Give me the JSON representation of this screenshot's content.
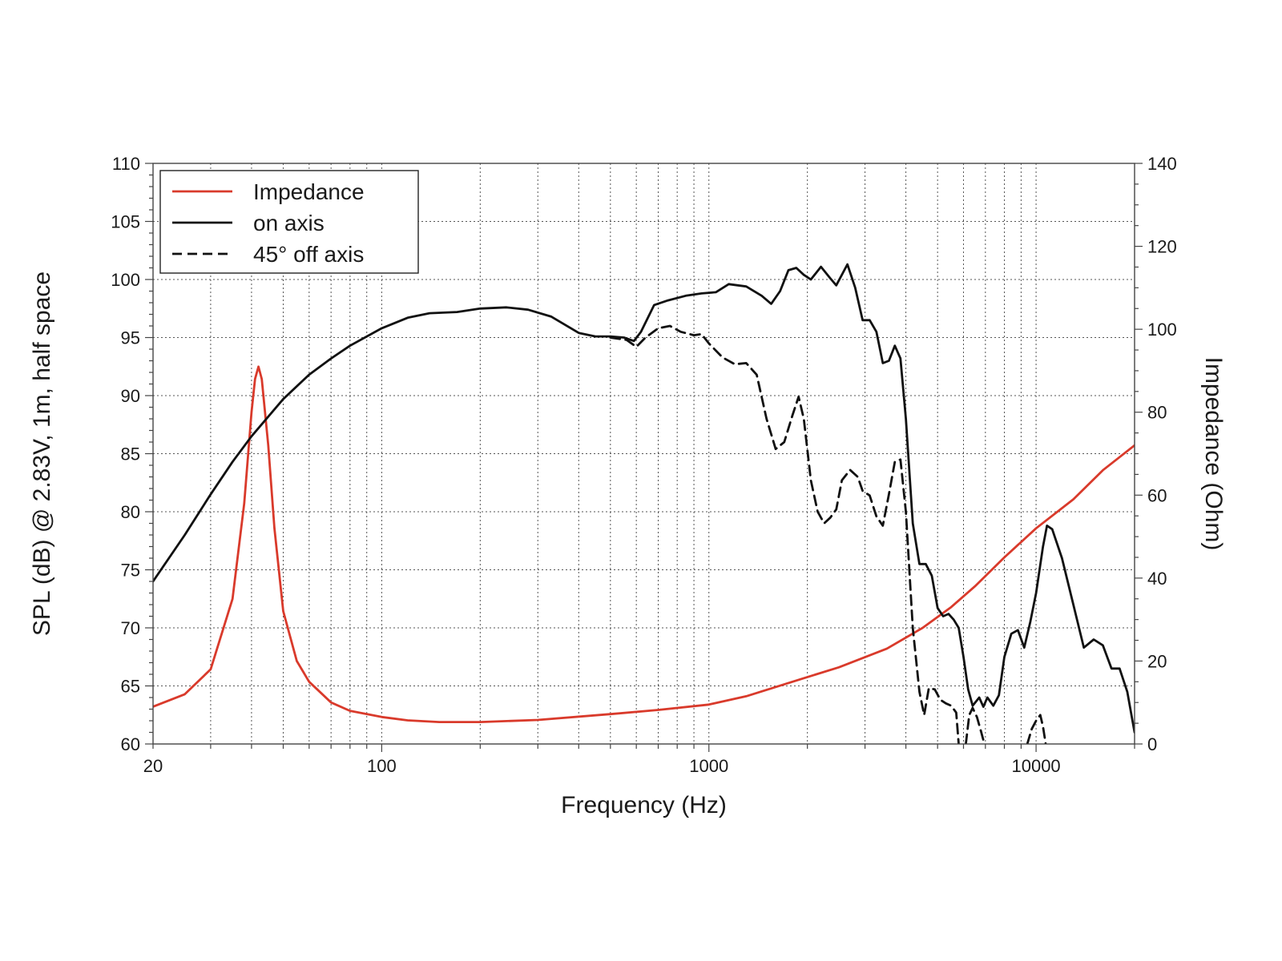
{
  "chart_data": {
    "type": "line",
    "xlabel": "Frequency (Hz)",
    "ylabel": "SPL (dB) @ 2.83V, 1m, half space",
    "y2label": "Impedance (Ohm)",
    "xscale": "log",
    "xlim": [
      20,
      20000
    ],
    "ylim": [
      60,
      110
    ],
    "y2lim": [
      0,
      140
    ],
    "x_ticks": [
      20,
      100,
      1000,
      10000
    ],
    "x_tick_labels": [
      "20",
      "100",
      "1000",
      "10000"
    ],
    "y_ticks": [
      60,
      65,
      70,
      75,
      80,
      85,
      90,
      95,
      100,
      105,
      110
    ],
    "y_tick_labels": [
      "60",
      "65",
      "70",
      "75",
      "80",
      "85",
      "90",
      "95",
      "100",
      "105",
      "110"
    ],
    "y2_ticks": [
      0,
      20,
      40,
      60,
      80,
      100,
      120,
      140
    ],
    "y2_tick_labels": [
      "0",
      "20",
      "40",
      "60",
      "80",
      "100",
      "120",
      "140"
    ],
    "grid": true,
    "legend_position": "top-left",
    "series": [
      {
        "name": "Impedance",
        "axis": "right",
        "color": "#d93a2b",
        "dash": "solid",
        "points": [
          [
            20,
            9
          ],
          [
            25,
            12
          ],
          [
            30,
            18
          ],
          [
            35,
            35
          ],
          [
            38,
            58
          ],
          [
            40,
            80
          ],
          [
            41,
            88
          ],
          [
            42,
            91
          ],
          [
            43,
            88
          ],
          [
            45,
            72
          ],
          [
            47,
            52
          ],
          [
            50,
            32
          ],
          [
            55,
            20
          ],
          [
            60,
            15
          ],
          [
            70,
            10
          ],
          [
            80,
            8
          ],
          [
            100,
            6.5
          ],
          [
            120,
            5.7
          ],
          [
            150,
            5.3
          ],
          [
            200,
            5.3
          ],
          [
            300,
            5.8
          ],
          [
            500,
            7.2
          ],
          [
            700,
            8.2
          ],
          [
            1000,
            9.5
          ],
          [
            1300,
            11.5
          ],
          [
            1800,
            15
          ],
          [
            2500,
            18.5
          ],
          [
            3500,
            23
          ],
          [
            4500,
            28
          ],
          [
            5500,
            33
          ],
          [
            6500,
            38
          ],
          [
            8000,
            45
          ],
          [
            10000,
            52
          ],
          [
            13000,
            59
          ],
          [
            16000,
            66
          ],
          [
            20000,
            72
          ]
        ]
      },
      {
        "name": "on axis",
        "axis": "left",
        "color": "#111111",
        "dash": "solid",
        "points": [
          [
            20,
            74
          ],
          [
            25,
            78
          ],
          [
            30,
            81.5
          ],
          [
            35,
            84.3
          ],
          [
            40,
            86.5
          ],
          [
            50,
            89.7
          ],
          [
            60,
            91.8
          ],
          [
            70,
            93.2
          ],
          [
            80,
            94.3
          ],
          [
            100,
            95.8
          ],
          [
            120,
            96.7
          ],
          [
            140,
            97.1
          ],
          [
            170,
            97.2
          ],
          [
            200,
            97.5
          ],
          [
            240,
            97.6
          ],
          [
            280,
            97.4
          ],
          [
            330,
            96.8
          ],
          [
            400,
            95.4
          ],
          [
            450,
            95.1
          ],
          [
            500,
            95.1
          ],
          [
            550,
            95
          ],
          [
            590,
            94.7
          ],
          [
            620,
            95.5
          ],
          [
            680,
            97.8
          ],
          [
            750,
            98.2
          ],
          [
            850,
            98.6
          ],
          [
            950,
            98.8
          ],
          [
            1050,
            98.9
          ],
          [
            1150,
            99.6
          ],
          [
            1300,
            99.4
          ],
          [
            1450,
            98.6
          ],
          [
            1550,
            97.9
          ],
          [
            1650,
            99
          ],
          [
            1750,
            100.8
          ],
          [
            1850,
            101
          ],
          [
            1950,
            100.4
          ],
          [
            2050,
            100
          ],
          [
            2200,
            101.1
          ],
          [
            2350,
            100.1
          ],
          [
            2450,
            99.5
          ],
          [
            2650,
            101.3
          ],
          [
            2800,
            99.3
          ],
          [
            2950,
            96.5
          ],
          [
            3100,
            96.5
          ],
          [
            3250,
            95.5
          ],
          [
            3400,
            92.8
          ],
          [
            3550,
            93
          ],
          [
            3700,
            94.3
          ],
          [
            3850,
            93.2
          ],
          [
            4000,
            88
          ],
          [
            4200,
            79
          ],
          [
            4400,
            75.5
          ],
          [
            4600,
            75.5
          ],
          [
            4800,
            74.5
          ],
          [
            5000,
            71.7
          ],
          [
            5200,
            71
          ],
          [
            5400,
            71.2
          ],
          [
            5600,
            70.7
          ],
          [
            5800,
            70
          ],
          [
            6000,
            67.5
          ],
          [
            6200,
            64.7
          ],
          [
            6400,
            63.3
          ],
          [
            6700,
            64
          ],
          [
            6900,
            63.2
          ],
          [
            7100,
            64
          ],
          [
            7400,
            63.3
          ],
          [
            7700,
            64.2
          ],
          [
            8000,
            67.5
          ],
          [
            8400,
            69.5
          ],
          [
            8800,
            69.8
          ],
          [
            9200,
            68.3
          ],
          [
            9600,
            70.5
          ],
          [
            10000,
            73
          ],
          [
            10500,
            77
          ],
          [
            10800,
            78.8
          ],
          [
            11200,
            78.5
          ],
          [
            12000,
            76
          ],
          [
            13000,
            72
          ],
          [
            14000,
            68.3
          ],
          [
            15000,
            69
          ],
          [
            16000,
            68.5
          ],
          [
            17000,
            66.5
          ],
          [
            18000,
            66.5
          ],
          [
            19000,
            64.5
          ],
          [
            20000,
            61
          ]
        ]
      },
      {
        "name": "45° off axis",
        "axis": "left",
        "color": "#111111",
        "dash": "dashed",
        "points": [
          [
            500,
            95
          ],
          [
            560,
            94.8
          ],
          [
            600,
            94.2
          ],
          [
            640,
            95
          ],
          [
            700,
            95.8
          ],
          [
            760,
            96
          ],
          [
            820,
            95.5
          ],
          [
            900,
            95.2
          ],
          [
            950,
            95.3
          ],
          [
            1000,
            94.5
          ],
          [
            1100,
            93.3
          ],
          [
            1200,
            92.7
          ],
          [
            1300,
            92.8
          ],
          [
            1400,
            91.8
          ],
          [
            1500,
            88
          ],
          [
            1600,
            85.4
          ],
          [
            1700,
            86
          ],
          [
            1800,
            88.3
          ],
          [
            1880,
            89.9
          ],
          [
            1950,
            88
          ],
          [
            2050,
            82.7
          ],
          [
            2150,
            80
          ],
          [
            2250,
            79
          ],
          [
            2350,
            79.5
          ],
          [
            2450,
            80.2
          ],
          [
            2550,
            82.7
          ],
          [
            2700,
            83.6
          ],
          [
            2850,
            83
          ],
          [
            2950,
            81.8
          ],
          [
            3100,
            81.4
          ],
          [
            3250,
            79.6
          ],
          [
            3400,
            78.8
          ],
          [
            3550,
            81.5
          ],
          [
            3700,
            84.3
          ],
          [
            3850,
            84.5
          ],
          [
            4000,
            80
          ],
          [
            4200,
            70
          ],
          [
            4400,
            64.5
          ],
          [
            4550,
            62.5
          ],
          [
            4700,
            64.8
          ],
          [
            4900,
            64.7
          ],
          [
            5100,
            63.8
          ],
          [
            5300,
            63.5
          ],
          [
            5500,
            63.3
          ],
          [
            5700,
            62.7
          ],
          [
            5800,
            60
          ]
        ],
        "segments_extra": [
          [
            [
              6100,
              60
            ],
            [
              6250,
              62.5
            ],
            [
              6400,
              63.1
            ],
            [
              6600,
              62.3
            ],
            [
              6800,
              61
            ],
            [
              6950,
              60
            ]
          ],
          [
            [
              9400,
              60
            ],
            [
              9700,
              61.3
            ],
            [
              10000,
              62
            ],
            [
              10300,
              62.5
            ],
            [
              10500,
              61.5
            ],
            [
              10700,
              60
            ]
          ]
        ]
      }
    ]
  }
}
